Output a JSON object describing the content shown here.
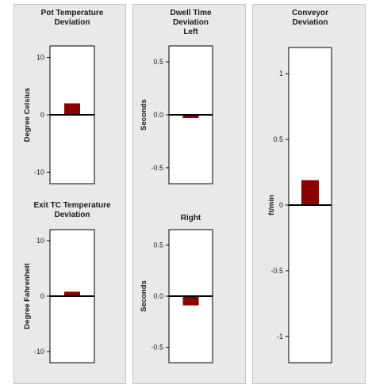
{
  "colors": {
    "panel_background": "#e9e9e9",
    "panel_border": "#c4c4c4",
    "bar": "#8b0000",
    "zero_line": "#000000",
    "plot_background": "#ffffff",
    "text": "#1a1a1a"
  },
  "panels": [
    {
      "name": "pot-and-exit-tc-panel"
    },
    {
      "name": "dwell-time-panel"
    },
    {
      "name": "conveyor-panel"
    }
  ],
  "chart_data": [
    {
      "type": "bar",
      "title": "Pot Temperature\nDeviation",
      "xlabel": "",
      "ylabel": "Degree Celsius",
      "ylim": [
        -12,
        12
      ],
      "yticks": [
        10,
        0,
        -10
      ],
      "ytick_labels": [
        "10",
        "0",
        "-10"
      ],
      "categories": [
        ""
      ],
      "values": [
        2
      ],
      "grid": false,
      "legend": "none"
    },
    {
      "type": "bar",
      "title": "Exit TC Temperature\nDeviation",
      "xlabel": "",
      "ylabel": "Degree Fahrenheit",
      "ylim": [
        -12,
        12
      ],
      "yticks": [
        10,
        0,
        -10
      ],
      "ytick_labels": [
        "10",
        "0",
        "-10"
      ],
      "categories": [
        ""
      ],
      "values": [
        0.8
      ],
      "grid": false,
      "legend": "none"
    },
    {
      "type": "bar",
      "title": "Dwell Time\nDeviation\nLeft",
      "xlabel": "",
      "ylabel": "Seconds",
      "ylim": [
        -0.65,
        0.65
      ],
      "yticks": [
        0.5,
        0,
        -0.5
      ],
      "ytick_labels": [
        "0.5",
        "0.0",
        "-0.5"
      ],
      "categories": [
        ""
      ],
      "values": [
        -0.03
      ],
      "grid": false,
      "legend": "none"
    },
    {
      "type": "bar",
      "title": "Right",
      "xlabel": "",
      "ylabel": "Seconds",
      "ylim": [
        -0.65,
        0.65
      ],
      "yticks": [
        0.5,
        0,
        -0.5
      ],
      "ytick_labels": [
        "0.5",
        "0.0",
        "-0.5"
      ],
      "categories": [
        ""
      ],
      "values": [
        -0.09
      ],
      "grid": false,
      "legend": "none"
    },
    {
      "type": "bar",
      "title": "Conveyor\nDeviation",
      "xlabel": "",
      "ylabel": "ft/min",
      "ylim": [
        -1.2,
        1.2
      ],
      "yticks": [
        1,
        0.5,
        0,
        -0.5,
        -1
      ],
      "ytick_labels": [
        "1",
        "0.5",
        "0",
        "-0.5",
        "-1"
      ],
      "categories": [
        ""
      ],
      "values": [
        0.19
      ],
      "grid": false,
      "legend": "none"
    }
  ]
}
